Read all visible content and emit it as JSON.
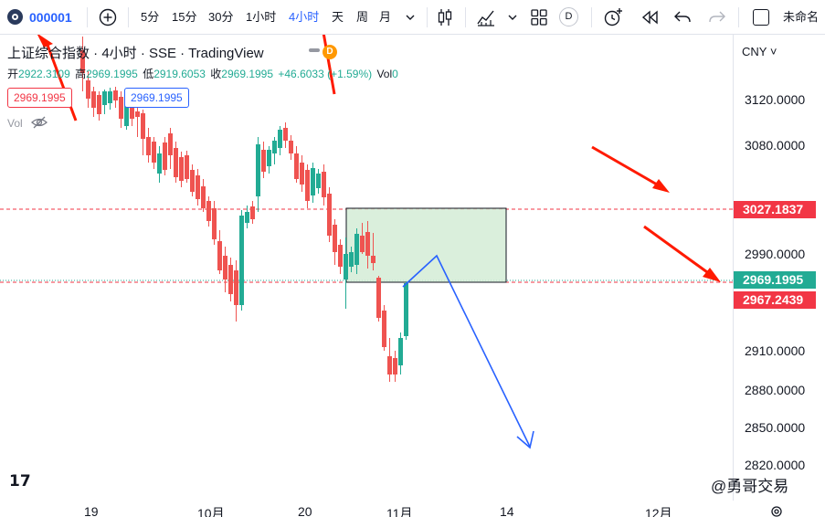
{
  "toolbar": {
    "symbol": "000001",
    "intervals": [
      {
        "label": "5分",
        "active": false
      },
      {
        "label": "15分",
        "active": false
      },
      {
        "label": "30分",
        "active": false
      },
      {
        "label": "1小时",
        "active": false
      },
      {
        "label": "4小时",
        "active": true
      },
      {
        "label": "天",
        "active": false
      },
      {
        "label": "周",
        "active": false
      },
      {
        "label": "月",
        "active": false
      }
    ],
    "d_badge": "D",
    "layout_name": "未命名"
  },
  "legend": {
    "title": "上证综合指数 · 4小时 · SSE · TradingView",
    "market_badge": "D",
    "open_label": "开",
    "open_value": "2922.3109",
    "high_label": "高",
    "high_value": "2969.1995",
    "low_label": "低",
    "low_value": "2919.6053",
    "close_label": "收",
    "close_value": "2969.1995",
    "change": "+46.6033 (+1.59%)",
    "vol_label": "Vol",
    "vol_value": "0",
    "pill_red": "2969.1995",
    "pill_blue": "2969.1995",
    "volume_indicator": "Vol"
  },
  "price_axis": {
    "currency": "CNY",
    "ticks": [
      "3120.0000",
      "3080.0000",
      "2990.0000",
      "2910.0000",
      "2880.0000",
      "2850.0000",
      "2820.0000"
    ],
    "tag_resistance": "3027.1837",
    "tag_last": "2969.1995",
    "tag_support": "2967.2439"
  },
  "time_axis": {
    "ticks": [
      "19",
      "10月",
      "20",
      "11月",
      "14",
      "12月"
    ]
  },
  "watermark": "@勇哥交易",
  "chart_data": {
    "type": "candlestick",
    "symbol": "上证综合指数",
    "interval": "4小时",
    "exchange": "SSE",
    "currency": "CNY",
    "ylim": [
      2800,
      3160
    ],
    "last_candle": {
      "open": 2922.3109,
      "high": 2969.1995,
      "low": 2919.6053,
      "close": 2969.1995
    },
    "horizontal_lines": [
      {
        "value": 3027.1837,
        "color": "#f23645",
        "style": "dashed"
      },
      {
        "value": 2967.2439,
        "color": "#f23645",
        "style": "dashed"
      },
      {
        "value": 2969.1995,
        "color": "#22ab94",
        "style": "dotted"
      }
    ],
    "up_color": "#22ab94",
    "down_color": "#ef5350",
    "rectangle_fill": "#d4ecd6",
    "projection_color": "#2962ff",
    "arrow_color": "#ff1a00"
  }
}
